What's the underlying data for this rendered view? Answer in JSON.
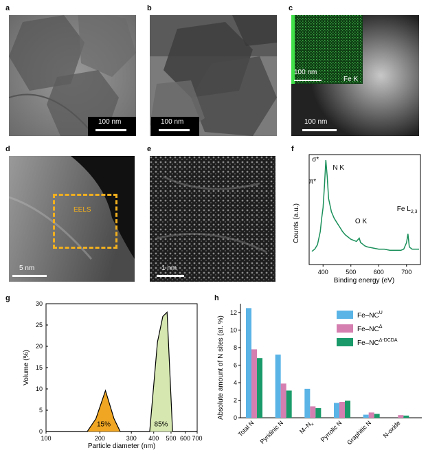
{
  "panels": {
    "a": {
      "letter": "a",
      "scalebar": "100 nm"
    },
    "b": {
      "letter": "b",
      "scalebar": "100 nm"
    },
    "c": {
      "letter": "c",
      "inset_scalebar": "100 nm",
      "inset_label": "Fe K",
      "scalebar": "100 nm"
    },
    "d": {
      "letter": "d",
      "roi_label": "EELS",
      "scalebar": "5 nm"
    },
    "e": {
      "letter": "e",
      "scalebar": "1 nm"
    },
    "f": {
      "letter": "f"
    },
    "g": {
      "letter": "g"
    },
    "h": {
      "letter": "h"
    }
  },
  "colors": {
    "eels_line": "#1a8f5a",
    "peak_15": "#f0a623",
    "peak_85": "#d6e8b0",
    "fe_nc_u": "#5ab4e6",
    "fe_nc_delta": "#d57fb0",
    "fe_nc_delta_dcda": "#1a9a6a",
    "roi_box": "#f2b01e",
    "edx_map": "#3fb54a"
  },
  "chart_data": [
    {
      "panel": "f",
      "type": "line",
      "xlabel": "Binding energy (eV)",
      "ylabel": "Counts (a.u.)",
      "xlim": [
        350,
        750
      ],
      "xticks": [
        400,
        500,
        600,
        700
      ],
      "annotations": [
        {
          "text": "σ*",
          "x": 395
        },
        {
          "text": "π*",
          "x": 388
        },
        {
          "text": "N K",
          "x": 420
        },
        {
          "text": "O K",
          "x": 535
        },
        {
          "text": "Fe L",
          "sub": "2,3",
          "x": 710
        }
      ],
      "x": [
        360,
        370,
        380,
        390,
        395,
        400,
        405,
        410,
        415,
        420,
        430,
        440,
        450,
        460,
        470,
        480,
        490,
        500,
        510,
        520,
        530,
        535,
        540,
        550,
        560,
        580,
        600,
        620,
        640,
        660,
        680,
        690,
        700,
        705,
        710,
        720,
        730,
        745
      ],
      "y": [
        0.12,
        0.14,
        0.18,
        0.3,
        0.42,
        0.52,
        0.72,
        0.95,
        0.8,
        0.6,
        0.48,
        0.42,
        0.38,
        0.34,
        0.3,
        0.27,
        0.25,
        0.23,
        0.22,
        0.21,
        0.24,
        0.2,
        0.19,
        0.17,
        0.16,
        0.15,
        0.14,
        0.14,
        0.13,
        0.13,
        0.13,
        0.14,
        0.2,
        0.28,
        0.16,
        0.14,
        0.14,
        0.14
      ]
    },
    {
      "panel": "g",
      "type": "area",
      "xlabel": "Particle diameter (nm)",
      "ylabel": "Volume (%)",
      "xscale": "log",
      "xlim": [
        100,
        700
      ],
      "ylim": [
        0,
        30
      ],
      "xticks": [
        100,
        200,
        300,
        400,
        500,
        600,
        700
      ],
      "yticks": [
        0,
        5,
        10,
        15,
        20,
        25,
        30
      ],
      "x": [
        100,
        170,
        190,
        215,
        240,
        260,
        380,
        420,
        450,
        475,
        510,
        700
      ],
      "y": [
        0,
        0,
        3,
        9.6,
        3,
        0,
        0,
        21,
        27,
        28,
        0,
        0
      ],
      "peaks": [
        {
          "label": "15%",
          "range": [
            170,
            260
          ]
        },
        {
          "label": "85%",
          "range": [
            380,
            510
          ]
        }
      ]
    },
    {
      "panel": "h",
      "type": "bar",
      "ylabel": "Absolute amount of N sites (at. %)",
      "ylim": [
        0,
        13
      ],
      "yticks": [
        0,
        2,
        4,
        6,
        8,
        10,
        12
      ],
      "categories": [
        "Total N",
        "Pyridinic N",
        "M–N",
        "Pyrrolic N",
        "Graphitic N",
        "N-oxide"
      ],
      "category_subs": [
        "",
        "",
        "x",
        "",
        "",
        ""
      ],
      "legend_position": "top-right",
      "series": [
        {
          "name": "Fe–NC",
          "sup": "U",
          "values": [
            12.5,
            7.2,
            3.3,
            1.7,
            0.35,
            0.0
          ]
        },
        {
          "name": "Fe–NC",
          "sup": "Δ",
          "values": [
            7.8,
            3.9,
            1.3,
            1.8,
            0.6,
            0.3
          ]
        },
        {
          "name": "Fe–NC",
          "sup": "Δ-DCDA",
          "values": [
            6.8,
            3.1,
            1.1,
            1.95,
            0.45,
            0.25
          ]
        }
      ]
    }
  ]
}
